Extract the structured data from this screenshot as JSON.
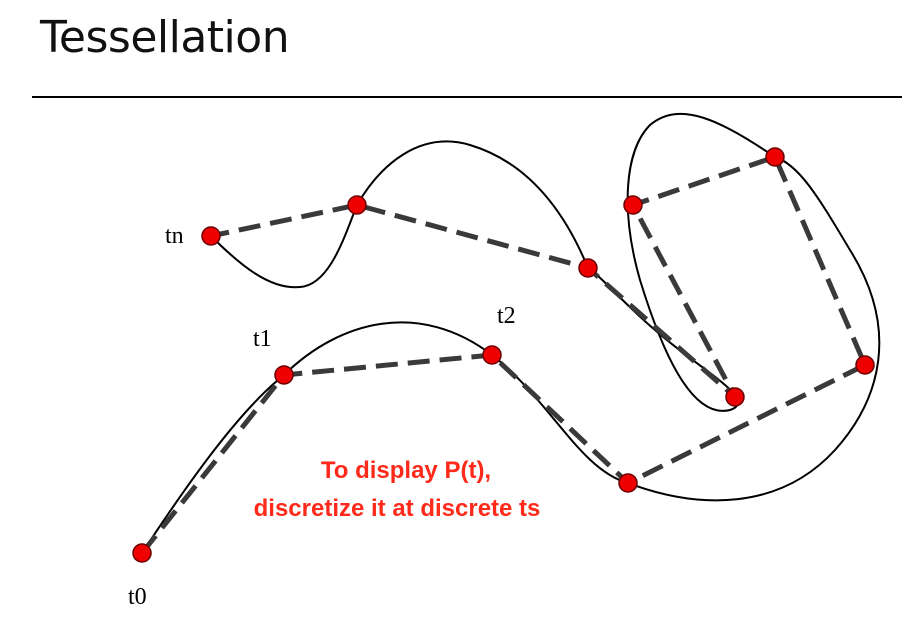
{
  "slide": {
    "title": "Tessellation"
  },
  "diagram": {
    "point_labels": {
      "t0": "t0",
      "t1": "t1",
      "t2": "t2",
      "tn": "tn"
    },
    "caption": {
      "line1": "To display P(t),",
      "line2": "discretize it at discrete ts"
    },
    "colors": {
      "curve": "#000000",
      "polyline": "#3a3a3a",
      "sample_point_fill": "#ee0000",
      "sample_point_stroke": "#6a0000",
      "caption": "#ff2a1a"
    }
  }
}
